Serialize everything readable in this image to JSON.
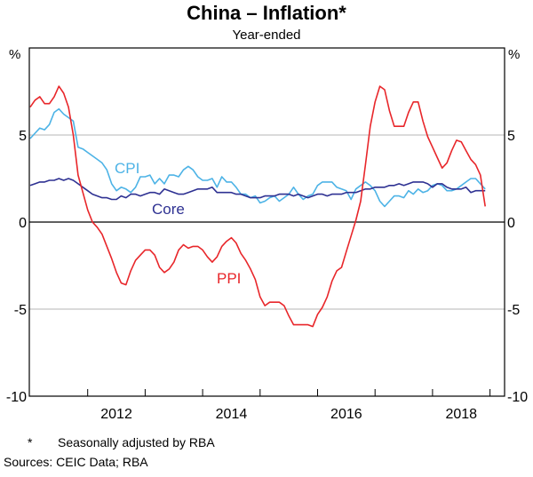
{
  "chart_data": {
    "type": "line",
    "title": "China – Inflation*",
    "subtitle": "Year-ended",
    "ylabel_left": "%",
    "ylabel_right": "%",
    "ylim": [
      -10,
      10
    ],
    "yticks": [
      -10,
      -5,
      0,
      5
    ],
    "xlim": [
      "2011-01",
      "2019-04"
    ],
    "xtick_labels": [
      "2012",
      "2014",
      "2016",
      "2018"
    ],
    "grid": "horizontal at 5, 0 and -5",
    "x_start": "2011-01",
    "frequency": "monthly",
    "series": [
      {
        "name": "CPI",
        "color": "#4db3e6",
        "values": [
          4.8,
          5.1,
          5.4,
          5.3,
          5.6,
          6.3,
          6.5,
          6.2,
          6.0,
          5.8,
          4.3,
          4.2,
          4.0,
          3.8,
          3.6,
          3.4,
          3.0,
          2.2,
          1.8,
          2.0,
          1.9,
          1.7,
          2.0,
          2.6,
          2.6,
          2.7,
          2.2,
          2.5,
          2.2,
          2.7,
          2.7,
          2.6,
          3.0,
          3.2,
          3.0,
          2.6,
          2.4,
          2.4,
          2.5,
          2.0,
          2.6,
          2.3,
          2.3,
          2.0,
          1.6,
          1.6,
          1.4,
          1.5,
          1.1,
          1.2,
          1.4,
          1.5,
          1.2,
          1.4,
          1.6,
          2.0,
          1.6,
          1.3,
          1.5,
          1.6,
          2.1,
          2.3,
          2.3,
          2.3,
          2.0,
          1.9,
          1.8,
          1.3,
          1.9,
          2.1,
          2.3,
          2.1,
          1.8,
          1.2,
          0.9,
          1.2,
          1.5,
          1.5,
          1.4,
          1.8,
          1.6,
          1.9,
          1.7,
          1.8,
          2.1,
          2.2,
          2.1,
          1.8,
          1.8,
          1.9,
          2.1,
          2.3,
          2.5,
          2.5,
          2.2,
          1.9
        ]
      },
      {
        "name": "Core",
        "color": "#2e3192",
        "values": [
          2.1,
          2.2,
          2.3,
          2.3,
          2.4,
          2.4,
          2.5,
          2.4,
          2.5,
          2.4,
          2.2,
          2.0,
          1.8,
          1.6,
          1.5,
          1.4,
          1.4,
          1.3,
          1.3,
          1.5,
          1.4,
          1.6,
          1.6,
          1.5,
          1.6,
          1.7,
          1.7,
          1.6,
          1.9,
          1.8,
          1.7,
          1.6,
          1.6,
          1.7,
          1.8,
          1.9,
          1.9,
          1.9,
          2.0,
          1.7,
          1.7,
          1.7,
          1.7,
          1.6,
          1.6,
          1.5,
          1.4,
          1.4,
          1.4,
          1.5,
          1.5,
          1.5,
          1.6,
          1.6,
          1.6,
          1.5,
          1.6,
          1.5,
          1.4,
          1.5,
          1.6,
          1.6,
          1.5,
          1.6,
          1.6,
          1.6,
          1.7,
          1.7,
          1.7,
          1.8,
          1.9,
          1.9,
          2.0,
          2.0,
          2.0,
          2.1,
          2.1,
          2.2,
          2.1,
          2.2,
          2.3,
          2.3,
          2.3,
          2.2,
          2.0,
          2.2,
          2.2,
          2.0,
          1.9,
          1.9,
          1.9,
          2.0,
          1.7,
          1.8,
          1.8,
          1.8
        ]
      },
      {
        "name": "PPI",
        "color": "#e8262a",
        "values": [
          6.6,
          7.0,
          7.2,
          6.8,
          6.8,
          7.2,
          7.8,
          7.4,
          6.6,
          5.0,
          2.7,
          1.7,
          0.7,
          0.0,
          -0.3,
          -0.7,
          -1.4,
          -2.1,
          -2.9,
          -3.5,
          -3.6,
          -2.8,
          -2.2,
          -1.9,
          -1.6,
          -1.6,
          -1.9,
          -2.6,
          -2.9,
          -2.7,
          -2.3,
          -1.6,
          -1.3,
          -1.5,
          -1.4,
          -1.4,
          -1.6,
          -2.0,
          -2.3,
          -2.0,
          -1.4,
          -1.1,
          -0.9,
          -1.2,
          -1.8,
          -2.2,
          -2.7,
          -3.3,
          -4.3,
          -4.8,
          -4.6,
          -4.6,
          -4.6,
          -4.8,
          -5.4,
          -5.9,
          -5.9,
          -5.9,
          -5.9,
          -6.0,
          -5.3,
          -4.9,
          -4.3,
          -3.4,
          -2.8,
          -2.6,
          -1.7,
          -0.8,
          0.1,
          1.2,
          3.3,
          5.5,
          6.9,
          7.8,
          7.6,
          6.4,
          5.5,
          5.5,
          5.5,
          6.3,
          6.9,
          6.9,
          5.8,
          4.9,
          4.3,
          3.7,
          3.1,
          3.4,
          4.1,
          4.7,
          4.6,
          4.1,
          3.6,
          3.3,
          2.7,
          0.9
        ]
      }
    ],
    "footnote_marker": "*",
    "footnote": "Seasonally adjusted by RBA",
    "sources": "Sources: CEIC Data; RBA"
  }
}
